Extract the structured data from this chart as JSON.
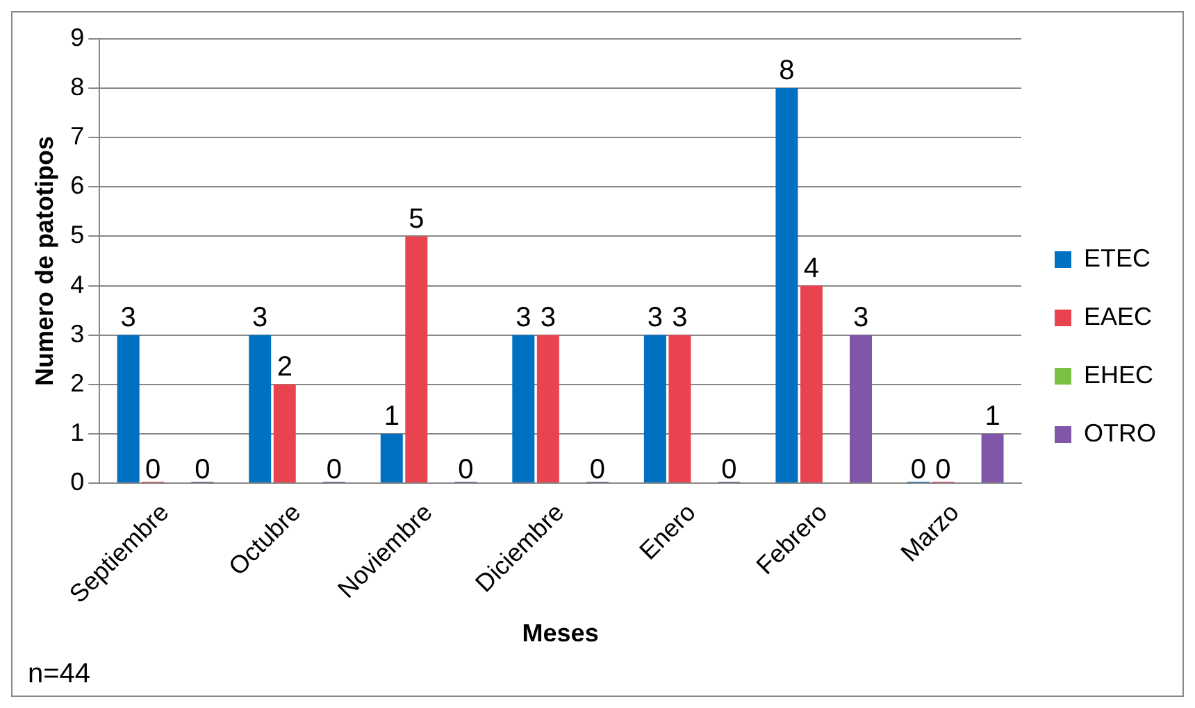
{
  "chart_data": {
    "type": "bar",
    "xlabel": "Meses",
    "ylabel": "Numero de patotipos",
    "categories": [
      "Septiembre",
      "Octubre",
      "Noviembre",
      "Diciembre",
      "Enero",
      "Febrero",
      "Marzo"
    ],
    "series": [
      {
        "name": "ETEC",
        "color": "#0070c0",
        "values": [
          3,
          3,
          1,
          3,
          3,
          8,
          0
        ]
      },
      {
        "name": "EAEC",
        "color": "#e8434f",
        "values": [
          0,
          2,
          5,
          3,
          3,
          4,
          0
        ]
      },
      {
        "name": "EHEC",
        "color": "#7ac142",
        "values": [
          null,
          null,
          null,
          null,
          null,
          null,
          null
        ]
      },
      {
        "name": "OTRO",
        "color": "#7f56a8",
        "values": [
          0,
          0,
          0,
          0,
          0,
          3,
          1
        ]
      }
    ],
    "ylim": [
      0,
      9
    ],
    "yticks": [
      0,
      1,
      2,
      3,
      4,
      5,
      6,
      7,
      8,
      9
    ],
    "grid": "y",
    "legend": "right",
    "data_labels": true,
    "annotations": [
      "n=44"
    ]
  }
}
